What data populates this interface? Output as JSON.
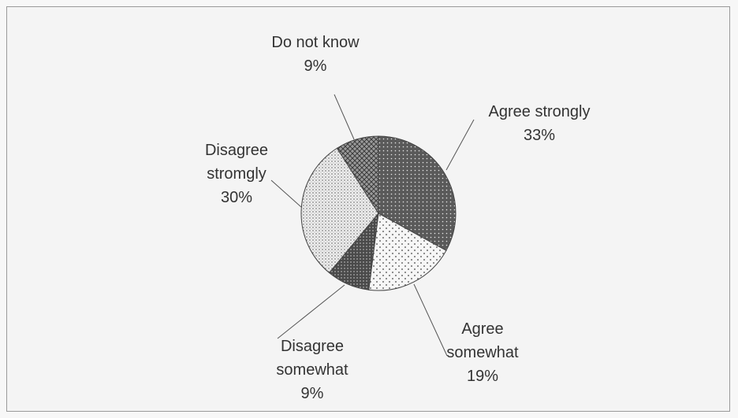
{
  "chart_data": {
    "type": "pie",
    "title": "",
    "legend": "none",
    "slices": [
      {
        "label_lines": [
          "Agree strongly"
        ],
        "value": 33,
        "pct_text": "33%",
        "pattern": "dense-dots"
      },
      {
        "label_lines": [
          "Agree",
          "somewhat"
        ],
        "value": 19,
        "pct_text": "19%",
        "pattern": "sparse-dots"
      },
      {
        "label_lines": [
          "Disagree",
          "somewhat"
        ],
        "value": 9,
        "pct_text": "9%",
        "pattern": "dark-dots"
      },
      {
        "label_lines": [
          "Disagree",
          "stromgly"
        ],
        "value": 30,
        "pct_text": "30%",
        "pattern": "fine-dots"
      },
      {
        "label_lines": [
          "Do not know"
        ],
        "value": 9,
        "pct_text": "9%",
        "pattern": "crosshatch"
      }
    ]
  }
}
